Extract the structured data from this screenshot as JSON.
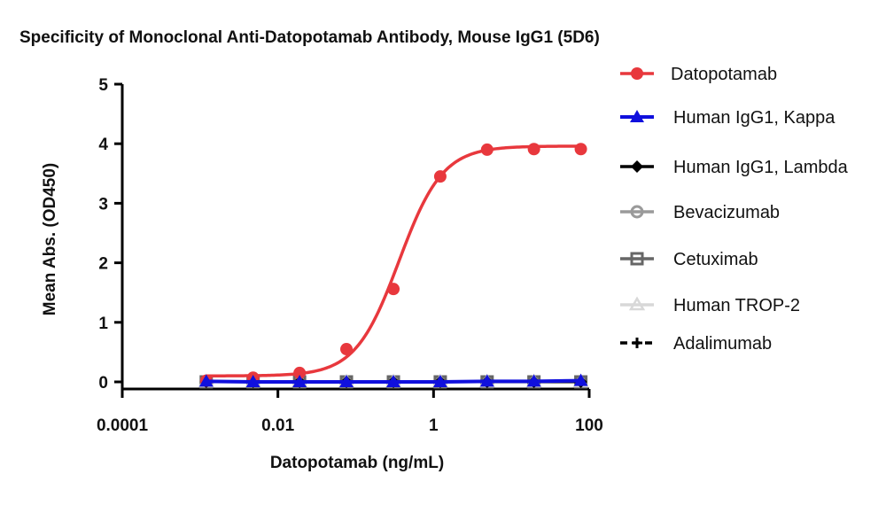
{
  "chart_data": {
    "type": "line",
    "title": "Specificity of Monoclonal Anti-Datopotamab Antibody, Mouse IgG1 (5D6)",
    "xlabel": "Datopotamab  (ng/mL)",
    "ylabel": "Mean Abs. (OD450)",
    "xscale": "log",
    "xlim": [
      0.0001,
      100
    ],
    "ylim": [
      0,
      5
    ],
    "xticks": [
      0.0001,
      0.01,
      1,
      100
    ],
    "xtick_labels": [
      "0.0001",
      "0.01",
      "1",
      "100"
    ],
    "yticks": [
      0,
      1,
      2,
      3,
      4,
      5
    ],
    "ytick_labels": [
      "0",
      "1",
      "2",
      "3",
      "4",
      "5"
    ],
    "grid": false,
    "legend_position": "right",
    "x": [
      0.0012,
      0.0048,
      0.019,
      0.076,
      0.305,
      1.22,
      4.88,
      19.5,
      78.1
    ],
    "series": [
      {
        "name": "Datopotamab",
        "color": "#e8383d",
        "marker": "circle-filled",
        "values": [
          0.02,
          0.07,
          0.15,
          0.55,
          1.56,
          3.45,
          3.9,
          3.91,
          3.91
        ],
        "fit": {
          "bottom": 0.1,
          "top": 3.96,
          "ec50": 0.36,
          "hill": 1.55
        }
      },
      {
        "name": "Human IgG1, Kappa",
        "color": "#1010dd",
        "marker": "triangle-filled",
        "values": [
          0.01,
          0.0,
          0.0,
          0.0,
          0.0,
          0.0,
          0.01,
          0.01,
          0.02
        ]
      },
      {
        "name": "Human IgG1, Lambda",
        "color": "#000000",
        "marker": "diamond-filled",
        "values": [
          0.0,
          0.0,
          0.0,
          0.0,
          0.0,
          0.0,
          0.0,
          0.0,
          0.0
        ]
      },
      {
        "name": "Bevacizumab",
        "color": "#9a9a9a",
        "marker": "circle-open",
        "values": [
          0.0,
          0.0,
          0.0,
          0.0,
          0.0,
          0.0,
          0.0,
          0.0,
          0.0
        ]
      },
      {
        "name": "Cetuximab",
        "color": "#666666",
        "marker": "square-open",
        "values": [
          0.0,
          0.0,
          0.0,
          0.0,
          0.0,
          0.0,
          0.0,
          0.0,
          0.0
        ]
      },
      {
        "name": "Human TROP-2",
        "color": "#d8d8d8",
        "marker": "triangle-open",
        "values": [
          0.0,
          0.0,
          0.0,
          0.0,
          0.0,
          0.0,
          0.0,
          0.0,
          0.0
        ]
      },
      {
        "name": "Adalimumab",
        "color": "#000000",
        "marker": "plus",
        "line": "dashed",
        "values": [
          0.0,
          0.0,
          0.0,
          0.0,
          0.0,
          0.0,
          0.0,
          0.0,
          0.0
        ]
      }
    ]
  }
}
